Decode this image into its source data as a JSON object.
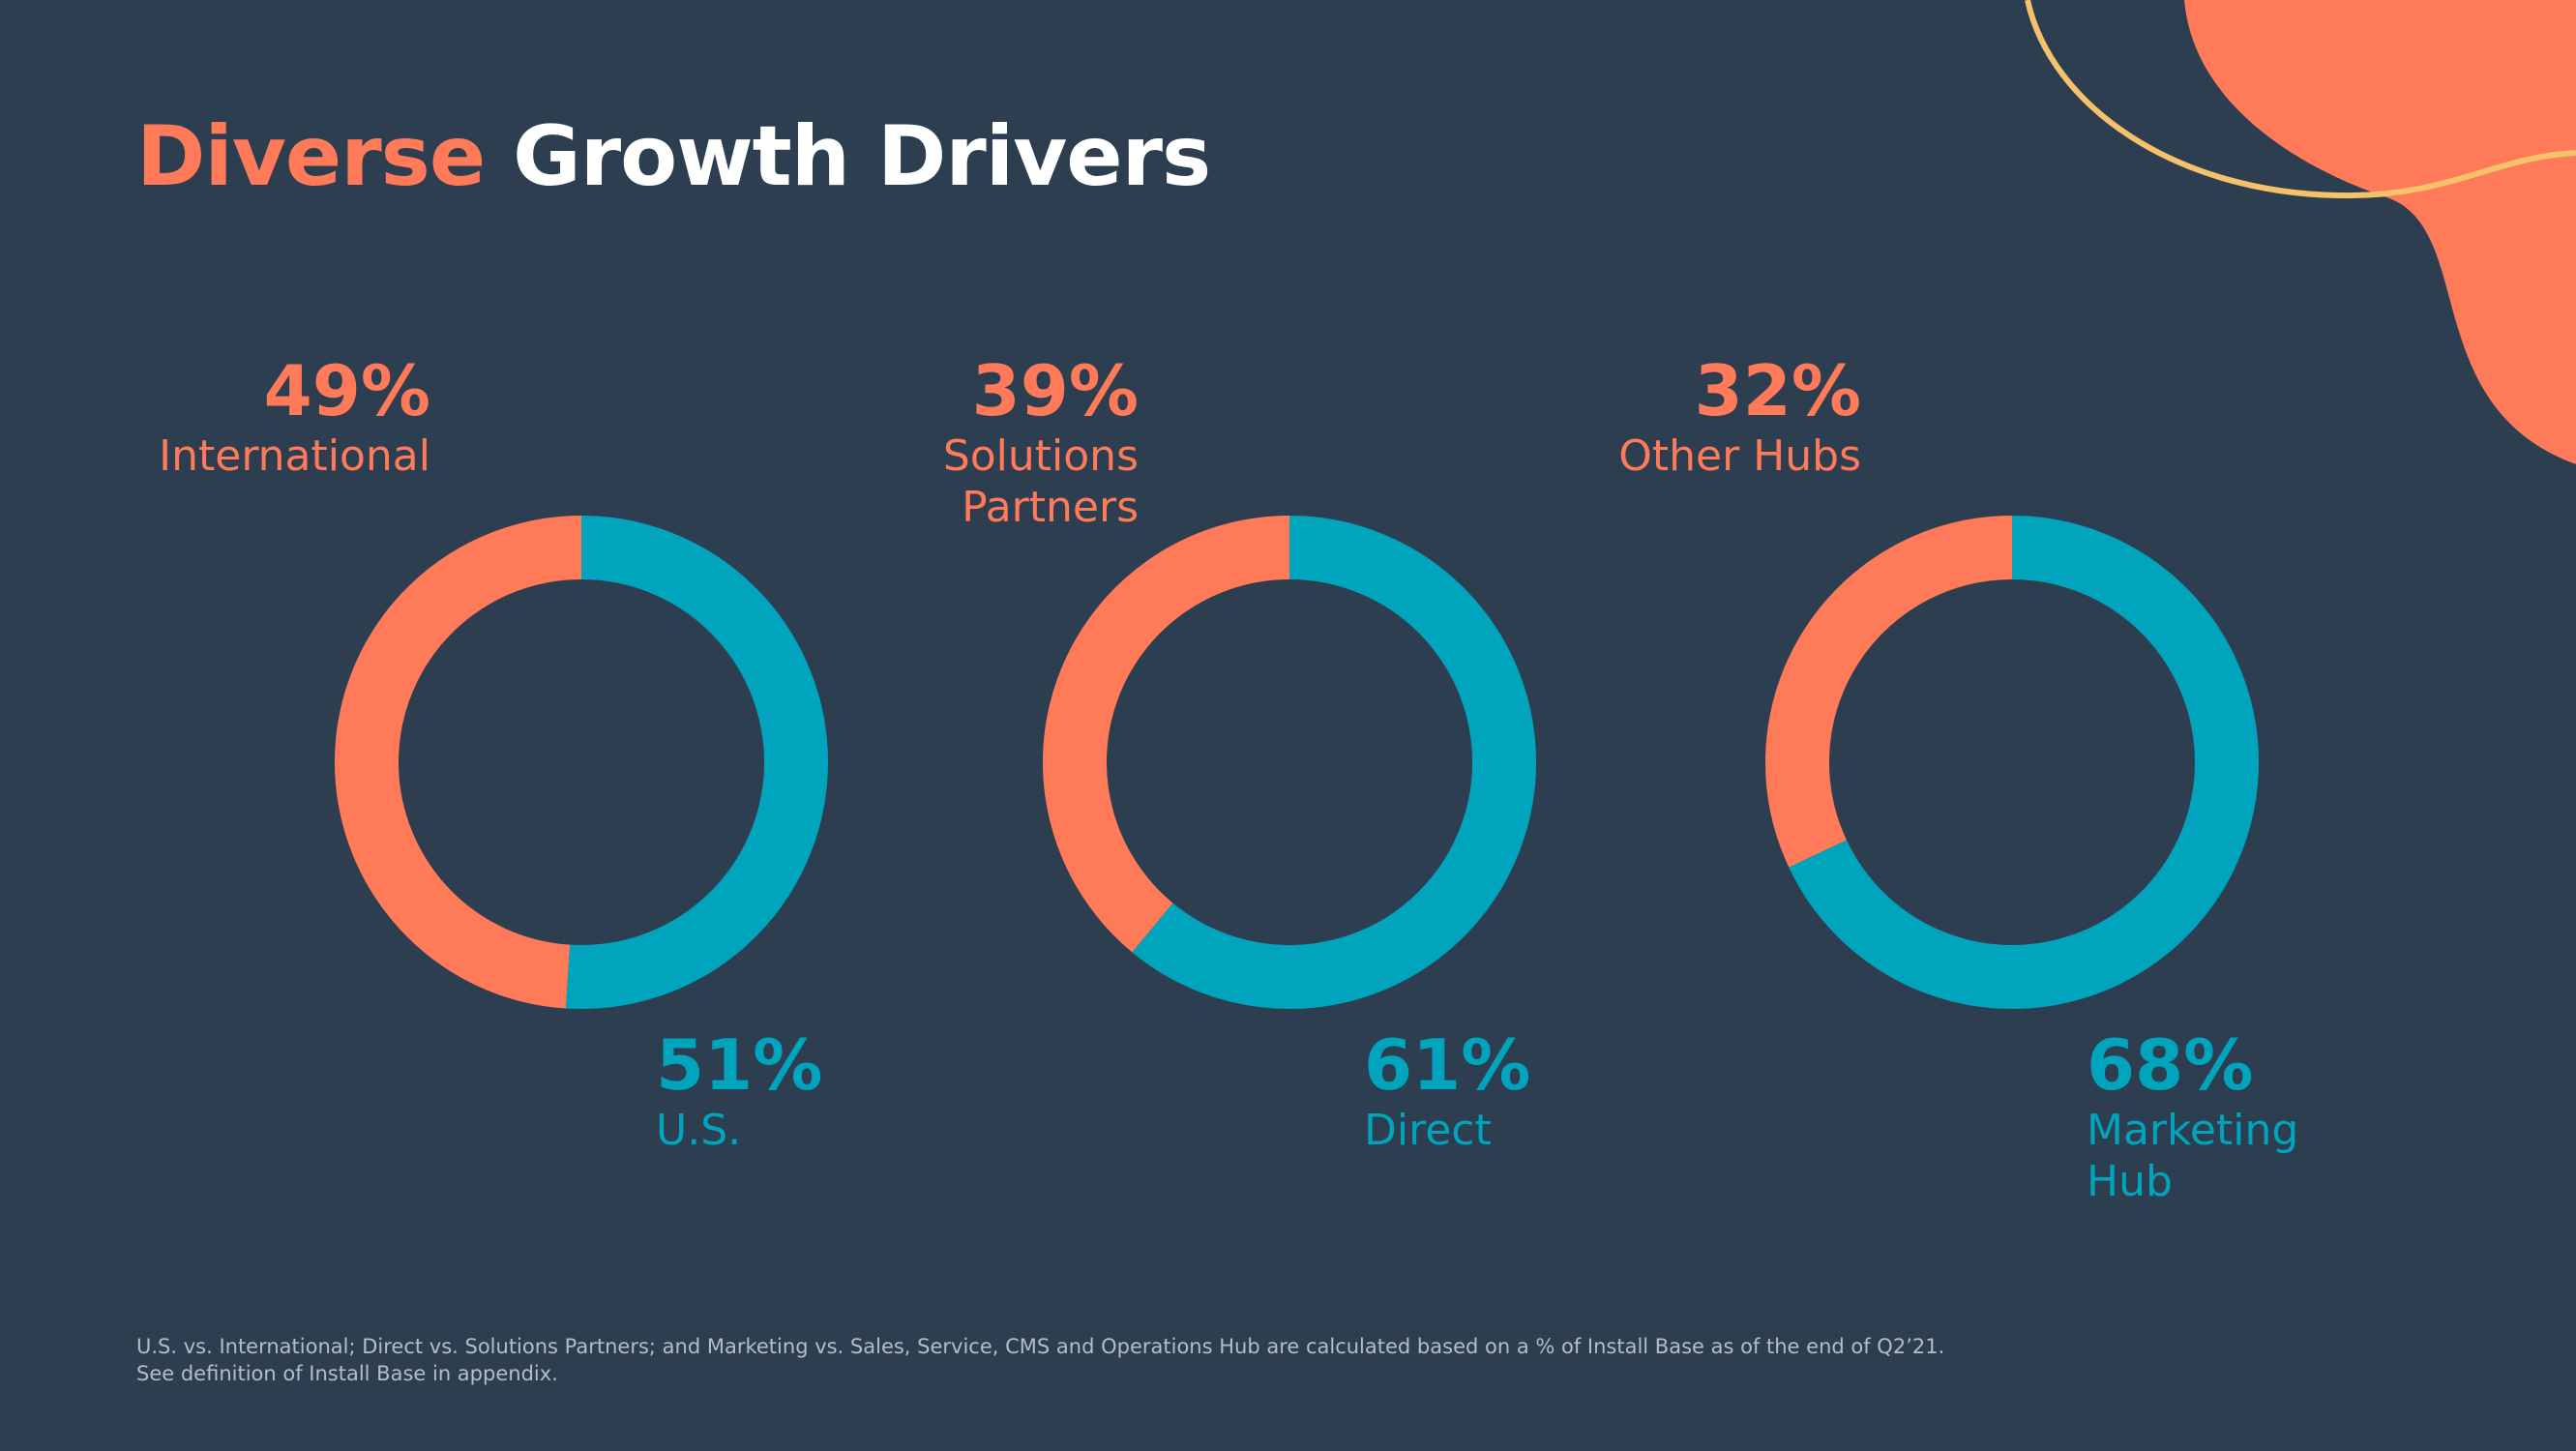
{
  "title": {
    "highlight": "Diverse",
    "rest": "Growth Drivers"
  },
  "footnote": [
    "U.S. vs. International; Direct vs. Solutions Partners; and Marketing vs. Sales, Service, CMS and Operations Hub are calculated based on a % of Install Base as of the end of Q2’21.",
    "See definition of Install Base in appendix."
  ],
  "chart_data": [
    {
      "type": "pie",
      "categories": [
        "International",
        "U.S."
      ],
      "values": [
        49,
        51
      ],
      "value_labels": [
        "49%",
        "51%"
      ],
      "colors": [
        "#ff7a59",
        "#00a4bd"
      ]
    },
    {
      "type": "pie",
      "categories": [
        "Solutions Partners",
        "Direct"
      ],
      "values": [
        39,
        61
      ],
      "value_labels": [
        "39%",
        "61%"
      ],
      "colors": [
        "#ff7a59",
        "#00a4bd"
      ]
    },
    {
      "type": "pie",
      "categories": [
        "Other Hubs",
        "Marketing Hub"
      ],
      "values": [
        32,
        68
      ],
      "value_labels": [
        "32%",
        "68%"
      ],
      "colors": [
        "#ff7a59",
        "#00a4bd"
      ]
    }
  ]
}
